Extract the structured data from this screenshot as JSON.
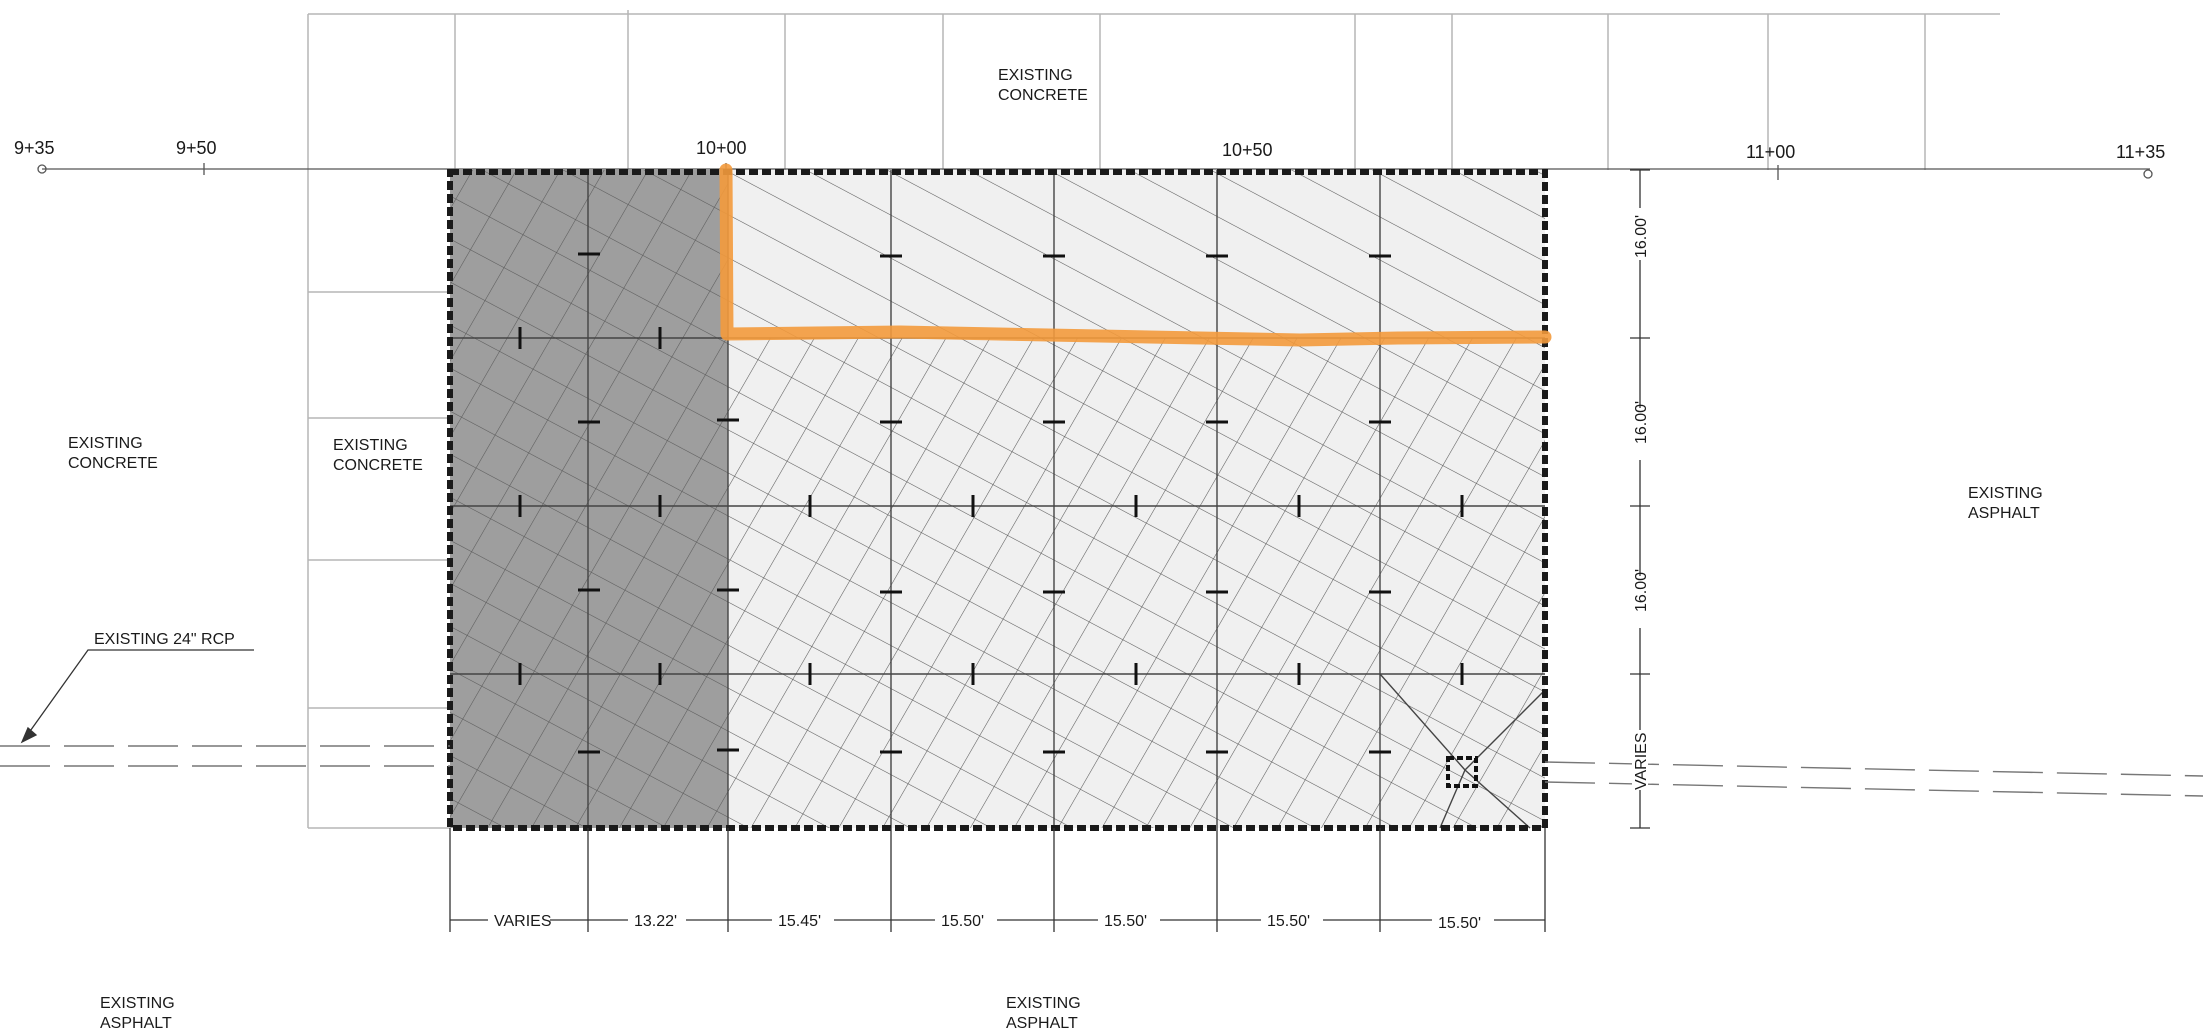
{
  "stations": [
    "9+35",
    "9+50",
    "10+00",
    "10+50",
    "11+00",
    "11+35"
  ],
  "areas": {
    "concrete_top": [
      "EXISTING",
      "CONCRETE"
    ],
    "concrete_left": [
      "EXISTING",
      "CONCRETE"
    ],
    "concrete_mid": [
      "EXISTING",
      "CONCRETE"
    ],
    "asphalt_right": [
      "EXISTING",
      "ASPHALT"
    ],
    "asphalt_bottom_left": [
      "EXISTING",
      "ASPHALT"
    ],
    "asphalt_bottom_mid": [
      "EXISTING",
      "ASPHALT"
    ]
  },
  "pipe_label": "EXISTING 24\" RCP",
  "bottom_dimensions": [
    "VARIES",
    "13.22'",
    "15.45'",
    "15.50'",
    "15.50'",
    "15.50'",
    "15.50'"
  ],
  "right_dimensions": [
    "16.00'",
    "16.00'",
    "16.00'",
    "VARIES"
  ],
  "colors": {
    "highlight": "#f39a3c",
    "gray_area": "#9e9e9e",
    "light_area": "#f0f0f0",
    "border": "#1a1a1a"
  }
}
